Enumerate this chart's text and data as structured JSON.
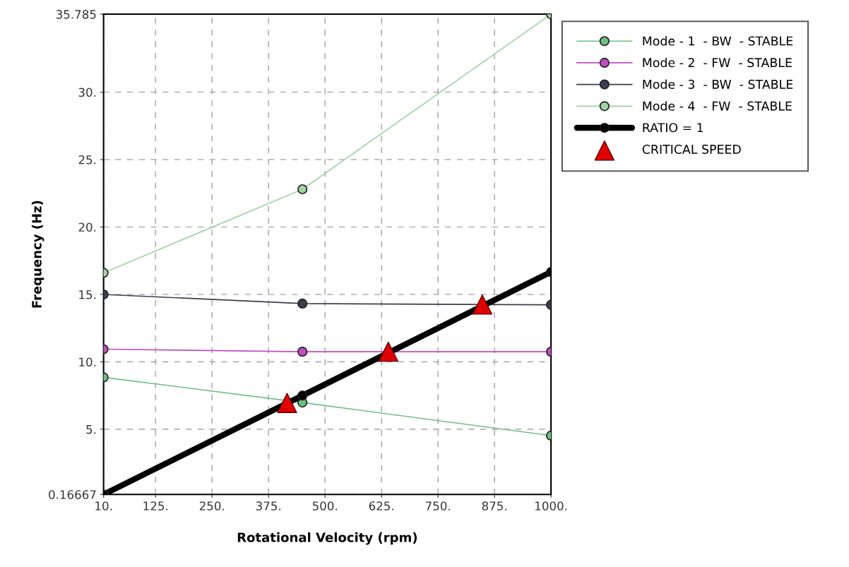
{
  "chart_data": {
    "type": "line",
    "xlabel": "Rotational Velocity (rpm)",
    "ylabel": "Frequency (Hz)",
    "xlim": [
      10,
      1000
    ],
    "ylim": [
      0.16667,
      35.785
    ],
    "xticks": [
      {
        "value": 10,
        "label": "10."
      },
      {
        "value": 125,
        "label": "125."
      },
      {
        "value": 250,
        "label": "250."
      },
      {
        "value": 375,
        "label": "375."
      },
      {
        "value": 500,
        "label": "500."
      },
      {
        "value": 625,
        "label": "625."
      },
      {
        "value": 750,
        "label": "750."
      },
      {
        "value": 875,
        "label": "875."
      },
      {
        "value": 1000,
        "label": "1000."
      }
    ],
    "yticks": [
      0.16667,
      {
        "value": 5,
        "label": "5."
      },
      {
        "value": 10,
        "label": "10."
      },
      {
        "value": 15,
        "label": "15."
      },
      {
        "value": 20,
        "label": "20."
      },
      {
        "value": 25,
        "label": "25."
      },
      {
        "value": 30,
        "label": "30."
      },
      35.785
    ],
    "grid": true,
    "legend": "right",
    "marker": "circle",
    "line_style": "solid",
    "series": [
      {
        "name": "Mode - 1  - BW  - STABLE",
        "color": "#6fbf82",
        "x": [
          10,
          450,
          1000
        ],
        "values": [
          8.85,
          6.98,
          4.53
        ]
      },
      {
        "name": "Mode - 2  - FW  - STABLE",
        "color": "#c04fc0",
        "x": [
          10,
          450,
          1000
        ],
        "values": [
          10.94,
          10.75,
          10.75
        ]
      },
      {
        "name": "Mode - 3  - BW  - STABLE",
        "color": "#3a3f4f",
        "x": [
          10,
          450,
          1000
        ],
        "values": [
          15.0,
          14.32,
          14.23
        ]
      },
      {
        "name": "Mode - 4  - FW  - STABLE",
        "color": "#9fd4a4",
        "x": [
          10,
          450,
          1000
        ],
        "values": [
          16.6,
          22.8,
          35.785
        ]
      },
      {
        "name": "RATIO = 1",
        "color": "#000000",
        "x": [
          10,
          450,
          1000
        ],
        "values": [
          0.16667,
          7.5,
          16.667
        ]
      },
      {
        "name": "CRITICAL SPEED",
        "type": "scatter",
        "marker": "triangle",
        "color": "#e00000",
        "x": [
          416,
          640,
          848
        ],
        "values": [
          6.95,
          10.75,
          14.25
        ]
      }
    ]
  }
}
